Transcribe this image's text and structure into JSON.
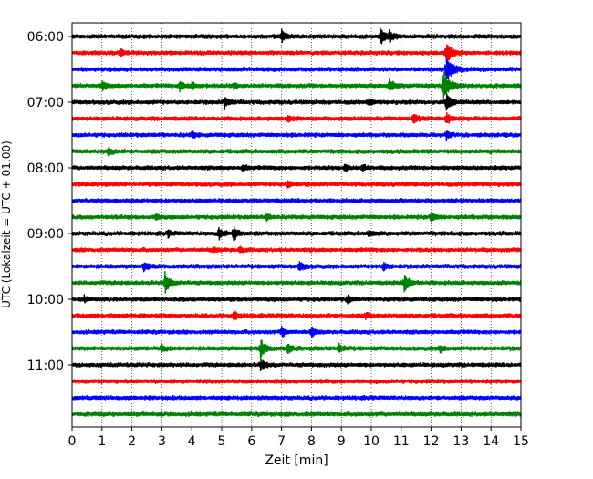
{
  "chart_data": {
    "type": "line",
    "title": "",
    "xlabel": "Zeit  [min]",
    "ylabel": "UTC (Lokalzeit = UTC + 01:00)",
    "xlim": [
      0,
      15
    ],
    "x_ticks": [
      "0",
      "1",
      "2",
      "3",
      "4",
      "5",
      "6",
      "7",
      "8",
      "9",
      "10",
      "11",
      "12",
      "13",
      "14",
      "15"
    ],
    "y_tick_labels": [
      "06:00",
      "07:00",
      "08:00",
      "09:00",
      "10:00",
      "11:00"
    ],
    "trace_interval_minutes": 15,
    "first_trace_time": "06:00",
    "grid": "vertical-dotted",
    "color_cycle": [
      "#000000",
      "#ff0000",
      "#0000ff",
      "#008000"
    ],
    "traces": [
      {
        "time": "06:00",
        "color": "#000000",
        "events": [
          {
            "t": 7.0,
            "amp": 0.6
          },
          {
            "t": 10.3,
            "amp": 0.8
          },
          {
            "t": 10.6,
            "amp": 0.5
          }
        ]
      },
      {
        "time": "06:15",
        "color": "#ff0000",
        "events": [
          {
            "t": 1.6,
            "amp": 0.4
          },
          {
            "t": 12.5,
            "amp": 1.2
          }
        ]
      },
      {
        "time": "06:30",
        "color": "#0000ff",
        "events": [
          {
            "t": 12.5,
            "amp": 1.5
          }
        ]
      },
      {
        "time": "06:45",
        "color": "#008000",
        "events": [
          {
            "t": 1.0,
            "amp": 0.4
          },
          {
            "t": 3.6,
            "amp": 0.5
          },
          {
            "t": 4.0,
            "amp": 0.4
          },
          {
            "t": 5.4,
            "amp": 0.3
          },
          {
            "t": 10.6,
            "amp": 0.6
          },
          {
            "t": 12.4,
            "amp": 1.5
          }
        ]
      },
      {
        "time": "07:00",
        "color": "#000000",
        "events": [
          {
            "t": 5.1,
            "amp": 0.6
          },
          {
            "t": 9.9,
            "amp": 0.3
          },
          {
            "t": 12.5,
            "amp": 0.9
          }
        ]
      },
      {
        "time": "07:15",
        "color": "#ff0000",
        "events": [
          {
            "t": 7.2,
            "amp": 0.3
          },
          {
            "t": 11.4,
            "amp": 0.5
          },
          {
            "t": 12.5,
            "amp": 0.6
          }
        ]
      },
      {
        "time": "07:30",
        "color": "#0000ff",
        "events": [
          {
            "t": 4.0,
            "amp": 0.3
          },
          {
            "t": 12.5,
            "amp": 0.4
          }
        ]
      },
      {
        "time": "07:45",
        "color": "#008000",
        "events": [
          {
            "t": 1.2,
            "amp": 0.4
          }
        ]
      },
      {
        "time": "08:00",
        "color": "#000000",
        "events": [
          {
            "t": 5.7,
            "amp": 0.3
          },
          {
            "t": 9.1,
            "amp": 0.4
          },
          {
            "t": 9.7,
            "amp": 0.3
          }
        ]
      },
      {
        "time": "08:15",
        "color": "#ff0000",
        "events": [
          {
            "t": 7.2,
            "amp": 0.3
          }
        ]
      },
      {
        "time": "08:30",
        "color": "#0000ff",
        "events": []
      },
      {
        "time": "08:45",
        "color": "#008000",
        "events": [
          {
            "t": 2.8,
            "amp": 0.3
          },
          {
            "t": 6.5,
            "amp": 0.3
          },
          {
            "t": 12.0,
            "amp": 0.5
          }
        ]
      },
      {
        "time": "09:00",
        "color": "#000000",
        "events": [
          {
            "t": 3.2,
            "amp": 0.3
          },
          {
            "t": 4.9,
            "amp": 0.6
          },
          {
            "t": 5.4,
            "amp": 0.7
          },
          {
            "t": 9.9,
            "amp": 0.3
          }
        ]
      },
      {
        "time": "09:15",
        "color": "#ff0000",
        "events": [
          {
            "t": 4.7,
            "amp": 0.3
          },
          {
            "t": 5.6,
            "amp": 0.3
          }
        ]
      },
      {
        "time": "09:30",
        "color": "#0000ff",
        "events": [
          {
            "t": 2.4,
            "amp": 0.4
          },
          {
            "t": 7.6,
            "amp": 0.5
          },
          {
            "t": 10.4,
            "amp": 0.4
          }
        ]
      },
      {
        "time": "09:45",
        "color": "#008000",
        "events": [
          {
            "t": 3.1,
            "amp": 1.0
          },
          {
            "t": 11.1,
            "amp": 0.9
          }
        ]
      },
      {
        "time": "10:00",
        "color": "#000000",
        "events": [
          {
            "t": 9.2,
            "amp": 0.4
          },
          {
            "t": 0.4,
            "amp": 0.3
          }
        ]
      },
      {
        "time": "10:15",
        "color": "#ff0000",
        "events": [
          {
            "t": 5.4,
            "amp": 0.4
          },
          {
            "t": 9.8,
            "amp": 0.3
          }
        ]
      },
      {
        "time": "10:30",
        "color": "#0000ff",
        "events": [
          {
            "t": 7.0,
            "amp": 0.5
          },
          {
            "t": 8.0,
            "amp": 0.5
          }
        ]
      },
      {
        "time": "10:45",
        "color": "#008000",
        "events": [
          {
            "t": 3.0,
            "amp": 0.3
          },
          {
            "t": 6.3,
            "amp": 0.9
          },
          {
            "t": 7.2,
            "amp": 0.5
          },
          {
            "t": 8.9,
            "amp": 0.5
          },
          {
            "t": 12.3,
            "amp": 0.4
          }
        ]
      },
      {
        "time": "11:00",
        "color": "#000000",
        "events": [
          {
            "t": 6.3,
            "amp": 0.5
          }
        ]
      },
      {
        "time": "11:15",
        "color": "#ff0000",
        "events": []
      },
      {
        "time": "11:30",
        "color": "#0000ff",
        "events": []
      },
      {
        "time": "11:45",
        "color": "#008000",
        "events": []
      }
    ]
  }
}
